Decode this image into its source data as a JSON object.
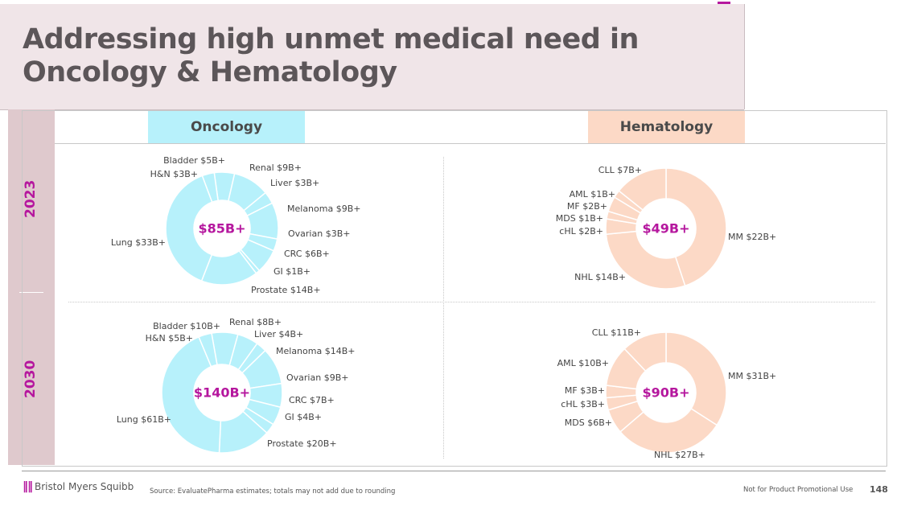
{
  "title": "Addressing high unmet medical need in Oncology & Hematology",
  "headers": {
    "oncology": "Oncology",
    "hematology": "Hematology"
  },
  "years": [
    "2023",
    "2030"
  ],
  "colors": {
    "oncology": "#b7f1fb",
    "hematology": "#fcd9c6",
    "accent": "#b5179e",
    "title": "#5c5659"
  },
  "chart_data": [
    {
      "type": "pie",
      "title": "Oncology 2023",
      "center_label": "$85B+",
      "slices": [
        {
          "name": "Bladder",
          "value": 5,
          "label": "Bladder $5B+"
        },
        {
          "name": "Renal",
          "value": 9,
          "label": "Renal $9B+"
        },
        {
          "name": "Liver",
          "value": 3,
          "label": "Liver $3B+"
        },
        {
          "name": "Melanoma",
          "value": 9,
          "label": "Melanoma $9B+"
        },
        {
          "name": "Ovarian",
          "value": 3,
          "label": "Ovarian $3B+"
        },
        {
          "name": "CRC",
          "value": 6,
          "label": "CRC $6B+"
        },
        {
          "name": "GI",
          "value": 1,
          "label": "GI $1B+"
        },
        {
          "name": "Prostate",
          "value": 14,
          "label": "Prostate $14B+"
        },
        {
          "name": "Lung",
          "value": 33,
          "label": "Lung $33B+"
        },
        {
          "name": "H&N",
          "value": 3,
          "label": "H&N $3B+"
        }
      ]
    },
    {
      "type": "pie",
      "title": "Hematology 2023",
      "center_label": "$49B+",
      "slices": [
        {
          "name": "MM",
          "value": 22,
          "label": "MM $22B+"
        },
        {
          "name": "NHL",
          "value": 14,
          "label": "NHL $14B+"
        },
        {
          "name": "cHL",
          "value": 2,
          "label": "cHL $2B+"
        },
        {
          "name": "MDS",
          "value": 1,
          "label": "MDS $1B+"
        },
        {
          "name": "MF",
          "value": 2,
          "label": "MF $2B+"
        },
        {
          "name": "AML",
          "value": 1,
          "label": "AML $1B+"
        },
        {
          "name": "CLL",
          "value": 7,
          "label": "CLL $7B+"
        }
      ]
    },
    {
      "type": "pie",
      "title": "Oncology 2030",
      "center_label": "$140B+",
      "slices": [
        {
          "name": "Bladder",
          "value": 10,
          "label": "Bladder $10B+"
        },
        {
          "name": "Renal",
          "value": 8,
          "label": "Renal $8B+"
        },
        {
          "name": "Liver",
          "value": 4,
          "label": "Liver $4B+"
        },
        {
          "name": "Melanoma",
          "value": 14,
          "label": "Melanoma $14B+"
        },
        {
          "name": "Ovarian",
          "value": 9,
          "label": "Ovarian $9B+"
        },
        {
          "name": "CRC",
          "value": 7,
          "label": "CRC $7B+"
        },
        {
          "name": "GI",
          "value": 4,
          "label": "GI $4B+"
        },
        {
          "name": "Prostate",
          "value": 20,
          "label": "Prostate $20B+"
        },
        {
          "name": "Lung",
          "value": 61,
          "label": "Lung $61B+"
        },
        {
          "name": "H&N",
          "value": 5,
          "label": "H&N $5B+"
        }
      ]
    },
    {
      "type": "pie",
      "title": "Hematology 2030",
      "center_label": "$90B+",
      "slices": [
        {
          "name": "MM",
          "value": 31,
          "label": "MM $31B+"
        },
        {
          "name": "NHL",
          "value": 27,
          "label": "NHL $27B+"
        },
        {
          "name": "MDS",
          "value": 6,
          "label": "MDS $6B+"
        },
        {
          "name": "cHL",
          "value": 3,
          "label": "cHL $3B+"
        },
        {
          "name": "MF",
          "value": 3,
          "label": "MF $3B+"
        },
        {
          "name": "AML",
          "value": 10,
          "label": "AML $10B+"
        },
        {
          "name": "CLL",
          "value": 11,
          "label": "CLL $11B+"
        }
      ]
    }
  ],
  "footer": {
    "logo": "Bristol Myers Squibb",
    "logo_mark": "‖‖",
    "source": "Source: EvaluatePharma estimates; totals may not add due to rounding",
    "disclaimer": "Not for Product Promotional Use",
    "page": "148"
  }
}
